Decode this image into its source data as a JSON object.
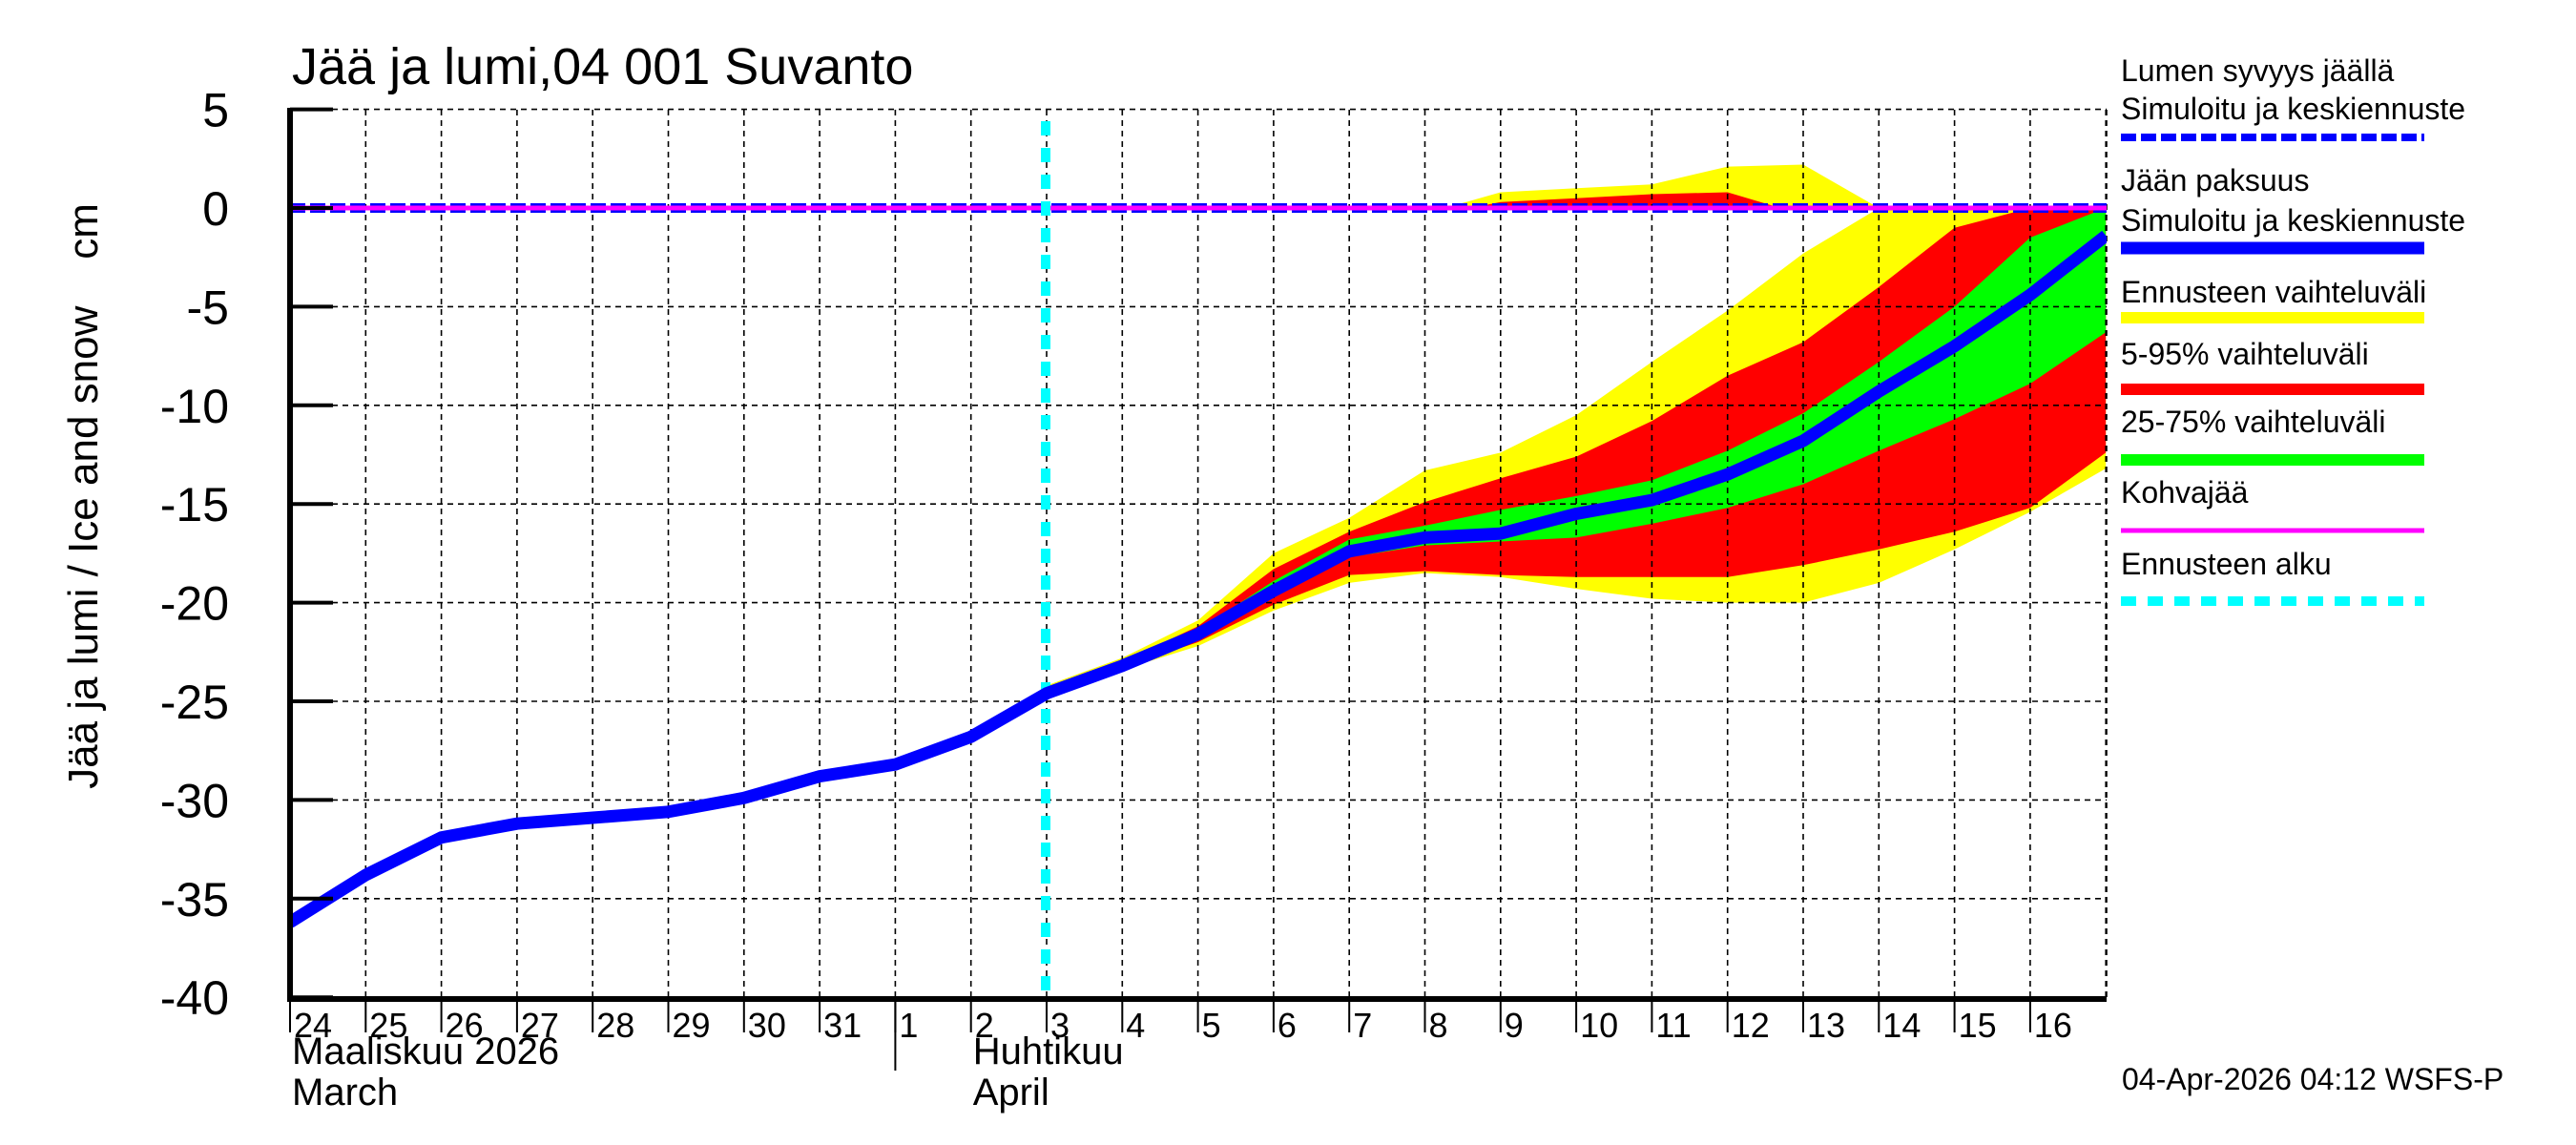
{
  "chart_data": {
    "type": "area",
    "title": "Jää ja lumi,04 001 Suvanto",
    "ylabel": "Jää ja lumi / Ice and snow    cm",
    "xlabel": "",
    "ylim": [
      -40,
      5
    ],
    "yticks": [
      5,
      0,
      -5,
      -10,
      -15,
      -20,
      -25,
      -30,
      -35,
      -40
    ],
    "xtick_labels": [
      "24",
      "25",
      "26",
      "27",
      "28",
      "29",
      "30",
      "31",
      "1",
      "2",
      "3",
      "4",
      "5",
      "6",
      "7",
      "8",
      "9",
      "10",
      "11",
      "12",
      "13",
      "14",
      "15",
      "16"
    ],
    "month_labels": [
      {
        "line1": "Maaliskuu 2026",
        "line2": "March"
      },
      {
        "line1": "Huhtikuu",
        "line2": "April"
      }
    ],
    "x_dates": [
      "2026-03-24",
      "2026-03-25",
      "2026-03-26",
      "2026-03-27",
      "2026-03-28",
      "2026-03-29",
      "2026-03-30",
      "2026-03-31",
      "2026-04-01",
      "2026-04-02",
      "2026-04-03",
      "2026-04-04",
      "2026-04-05",
      "2026-04-06",
      "2026-04-07",
      "2026-04-08",
      "2026-04-09",
      "2026-04-10",
      "2026-04-11",
      "2026-04-12",
      "2026-04-13",
      "2026-04-14",
      "2026-04-15",
      "2026-04-16",
      "2026-04-17"
    ],
    "forecast_start": "2026-04-03",
    "grid": true,
    "legend_position": "right",
    "series": [
      {
        "name": "Jään paksuus – Simuloitu ja keskiennuste",
        "kind": "line",
        "color": "#0000ff",
        "values": [
          -36.2,
          -33.8,
          -31.9,
          -31.2,
          -30.9,
          -30.6,
          -29.9,
          -28.8,
          -28.2,
          -26.8,
          -24.6,
          -23.2,
          -21.6,
          -19.4,
          -17.4,
          -16.7,
          -16.5,
          -15.5,
          -14.8,
          -13.5,
          -11.8,
          -9.3,
          -7.0,
          -4.4,
          -1.4
        ]
      },
      {
        "name": "Lumen syvyys jäällä – Simuloitu ja keskiennuste",
        "kind": "dashed-line",
        "color": "#0000ff",
        "values": [
          0,
          0,
          0,
          0,
          0,
          0,
          0,
          0,
          0,
          0,
          0,
          0,
          0,
          0,
          0,
          0,
          0,
          0,
          0,
          0,
          0,
          0,
          0,
          0,
          0
        ]
      },
      {
        "name": "Kohvajää",
        "kind": "line",
        "color": "#ff00ff",
        "values": [
          0,
          0,
          0,
          0,
          0,
          0,
          0,
          0,
          0,
          0,
          0,
          0,
          0,
          0,
          0,
          0,
          0,
          0,
          0,
          0,
          0,
          0,
          0,
          0,
          0
        ]
      }
    ],
    "bands": {
      "x_start_index": 10,
      "ice": {
        "ennusteen_vaihteluvali": {
          "upper": [
            -24.2,
            -22.8,
            -20.9,
            -17.5,
            -15.7,
            -13.3,
            -12.4,
            -10.5,
            -7.8,
            -5.2,
            -2.3,
            0,
            0,
            0,
            0
          ],
          "lower": [
            -24.8,
            -23.4,
            -22.2,
            -20.4,
            -19.0,
            -18.5,
            -18.7,
            -19.3,
            -19.8,
            -20.0,
            -20.0,
            -19.0,
            -17.3,
            -15.4,
            -13.2
          ]
        },
        "p5_95": {
          "upper": [
            -24.5,
            -23.0,
            -21.2,
            -18.3,
            -16.4,
            -14.9,
            -13.7,
            -12.6,
            -10.8,
            -8.5,
            -6.8,
            -4.0,
            -1.0,
            0,
            0
          ],
          "lower": [
            -24.7,
            -23.3,
            -22.0,
            -20.1,
            -18.6,
            -18.4,
            -18.6,
            -18.7,
            -18.7,
            -18.7,
            -18.1,
            -17.3,
            -16.4,
            -15.2,
            -12.4
          ]
        },
        "p25_75": {
          "upper": [
            -24.6,
            -23.1,
            -21.4,
            -18.9,
            -16.8,
            -16.1,
            -15.3,
            -14.6,
            -13.8,
            -12.3,
            -10.4,
            -7.8,
            -5.0,
            -1.5,
            0
          ],
          "lower": [
            -24.6,
            -23.2,
            -21.8,
            -19.7,
            -17.7,
            -17.1,
            -16.9,
            -16.7,
            -16.0,
            -15.2,
            -14.0,
            -12.3,
            -10.7,
            -8.9,
            -6.3
          ]
        }
      },
      "snow": {
        "ennusteen_vaihteluvali": {
          "x": [
            8.27,
            9,
            10,
            11,
            12,
            13,
            14.0
          ],
          "upper": [
            0,
            0.8,
            1.0,
            1.2,
            2.1,
            2.2,
            0
          ]
        },
        "p5_95": {
          "x": [
            8.6,
            9,
            10,
            11,
            12,
            12.7
          ],
          "upper": [
            0,
            0.3,
            0.5,
            0.7,
            0.8,
            0
          ]
        }
      }
    }
  },
  "legend": {
    "items": [
      {
        "label_lines": [
          "Lumen syvyys jäällä",
          "Simuloitu ja keskiennuste"
        ],
        "swatch": "dashed",
        "color": "#0000ff"
      },
      {
        "label_lines": [
          "Jään paksuus",
          "Simuloitu ja keskiennuste"
        ],
        "swatch": "solid-thick",
        "color": "#0000ff"
      },
      {
        "label_lines": [
          "Ennusteen vaihteluväli"
        ],
        "swatch": "solid",
        "color": "#ffff00"
      },
      {
        "label_lines": [
          "5-95% vaihteluväli"
        ],
        "swatch": "solid",
        "color": "#ff0000"
      },
      {
        "label_lines": [
          "25-75% vaihteluväli"
        ],
        "swatch": "solid",
        "color": "#00ff00"
      },
      {
        "label_lines": [
          "Kohvajää"
        ],
        "swatch": "thin",
        "color": "#ff00ff"
      },
      {
        "label_lines": [
          "Ennusteen alku"
        ],
        "swatch": "dashed-cyan",
        "color": "#00ffff"
      }
    ]
  },
  "footer": {
    "timestamp": "04-Apr-2026 04:12 WSFS-P"
  },
  "colors": {
    "ice_line": "#0000ff",
    "range_yellow": "#ffff00",
    "range_red": "#ff0000",
    "range_green": "#00ff00",
    "kohvajaa": "#ff00ff",
    "forecast_start": "#00ffff"
  }
}
